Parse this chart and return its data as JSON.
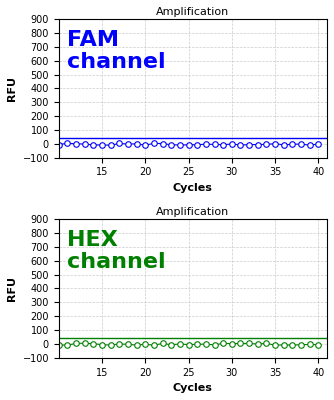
{
  "title": "Amplification",
  "xlabel": "Cycles",
  "ylabel": "RFU",
  "ylim": [
    -100,
    900
  ],
  "yticks": [
    -100,
    0,
    100,
    200,
    300,
    400,
    500,
    600,
    700,
    800,
    900
  ],
  "xlim": [
    10,
    41
  ],
  "xticks": [
    15,
    20,
    25,
    30,
    35,
    40
  ],
  "cycles_start": 10,
  "cycles_end": 40,
  "fam_label": "FAM\nchannel",
  "fam_color": "#0000FF",
  "hex_label": "HEX\nchannel",
  "hex_color": "#008000",
  "data_y_value": 0,
  "threshold_y": 45,
  "background_color": "#FFFFFF",
  "grid_color": "#CCCCCC",
  "title_fontsize": 8,
  "axis_label_fontsize": 8,
  "channel_label_fontsize": 16,
  "tick_fontsize": 7
}
